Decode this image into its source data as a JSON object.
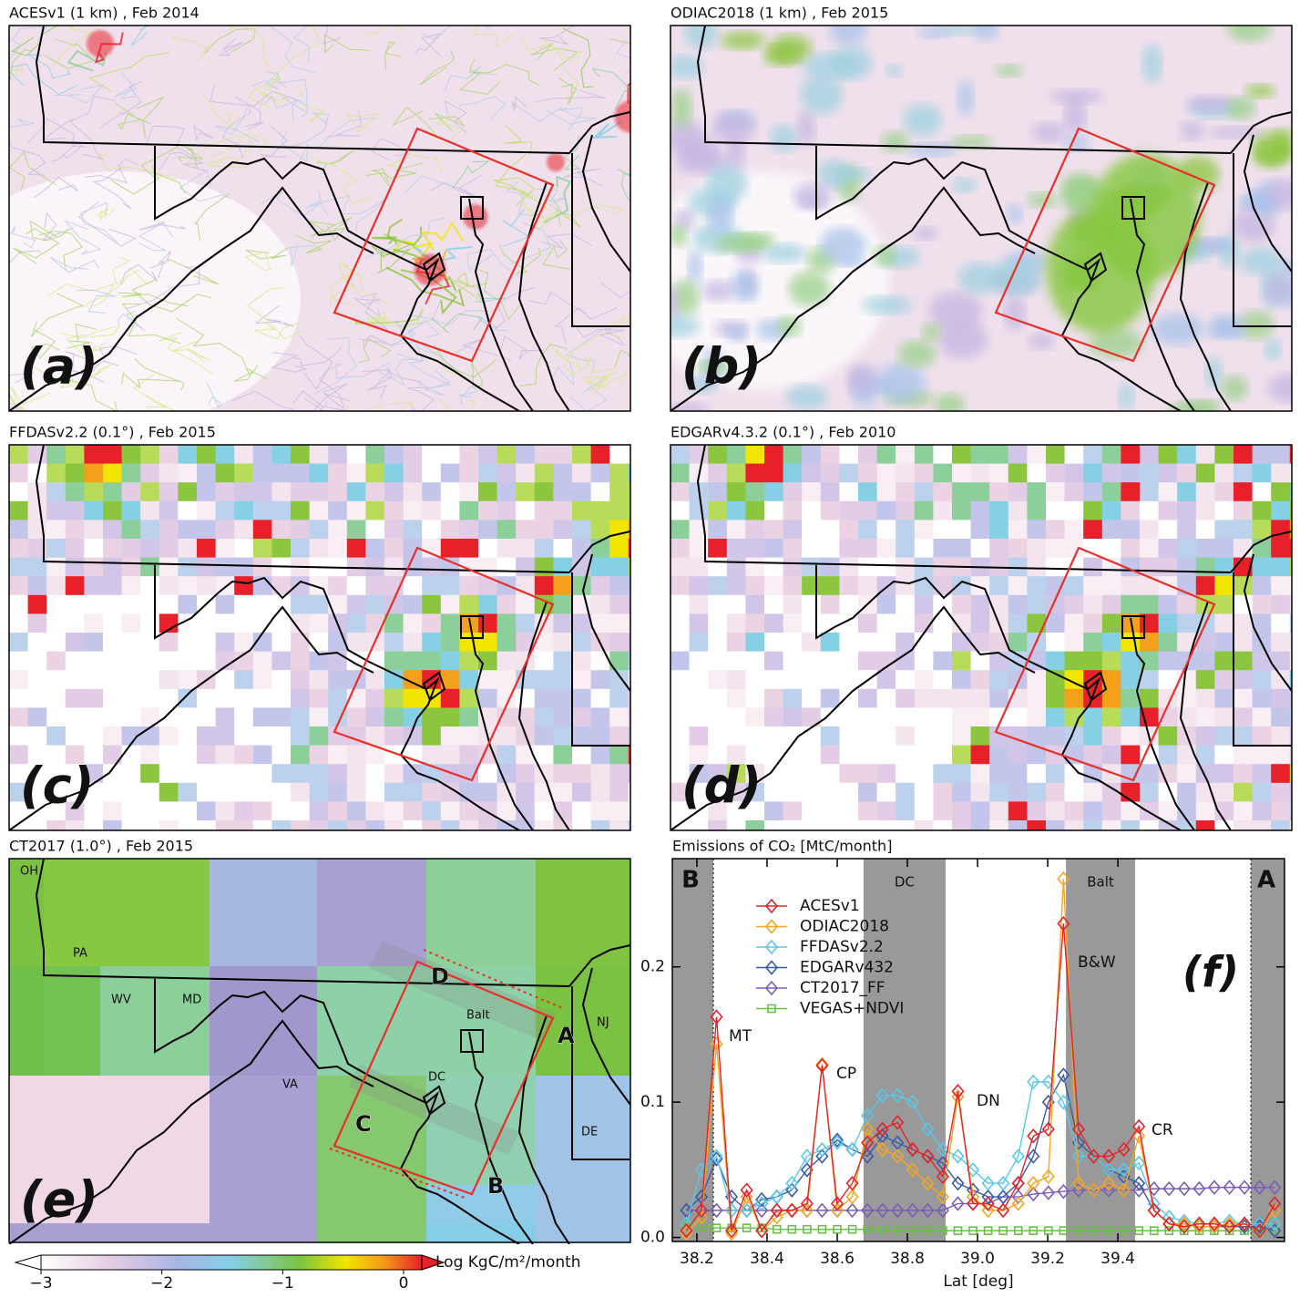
{
  "panels": [
    {
      "title": "ACESv1 (1 km) , Feb 2014",
      "label": "(a)"
    },
    {
      "title": "ODIAC2018 (1 km) , Feb 2015",
      "label": "(b)"
    },
    {
      "title": "FFDASv2.2 (0.1°) , Feb 2015",
      "label": "(c)"
    },
    {
      "title": "EDGARv4.3.2 (0.1°) , Feb 2010",
      "label": "(d)"
    },
    {
      "title": "CT2017 (1.0°) , Feb 2015",
      "label": "(e)",
      "map_labels": [
        "OH",
        "PA",
        "WV",
        "MD",
        "VA",
        "NJ",
        "DE",
        "DC",
        "Balt",
        "A",
        "B",
        "C",
        "D"
      ]
    }
  ],
  "colorbar": {
    "label": "Log KgC/m²/month",
    "ticks": [
      {
        "value": -3,
        "label": "−3"
      },
      {
        "value": -2,
        "label": "−2"
      },
      {
        "value": -1,
        "label": "−1"
      },
      {
        "value": 0,
        "label": "0"
      }
    ]
  },
  "chart_data": {
    "type": "line",
    "title": "Emissions of CO₂ [MtC/month]",
    "x_label": "Lat [deg]",
    "xlim": [
      38.13,
      39.875
    ],
    "xticks": [
      38.2,
      38.4,
      38.6,
      38.8,
      {
        "value": 39,
        "label": "39.0"
      },
      39.2,
      39.4
    ],
    "ylim": [
      -0.003,
      0.28
    ],
    "yticks": [
      {
        "value": 0,
        "label": "0.0"
      },
      0.1,
      0.2
    ],
    "shaded_regions": [
      {
        "label": "B",
        "from": 38.13,
        "to": 38.247
      },
      {
        "label": "DC",
        "from": 38.675,
        "to": 38.909
      },
      {
        "label": "Balt",
        "from": 39.252,
        "to": 39.449
      },
      {
        "label": "A",
        "from": 39.779,
        "to": 39.875
      }
    ],
    "annotations": [
      "MT",
      "CP",
      "DN",
      "B&W",
      "CR",
      "(f)"
    ],
    "x": [
      38.17,
      38.213,
      38.256,
      38.299,
      38.342,
      38.385,
      38.428,
      38.471,
      38.514,
      38.557,
      38.6,
      38.643,
      38.686,
      38.729,
      38.772,
      38.815,
      38.858,
      38.901,
      38.944,
      38.987,
      39.03,
      39.073,
      39.116,
      39.159,
      39.202,
      39.245,
      39.288,
      39.331,
      39.374,
      39.417,
      39.46,
      39.503,
      39.546,
      39.589,
      39.632,
      39.675,
      39.718,
      39.761,
      39.804,
      39.847
    ],
    "series": [
      {
        "name": "ACESv1",
        "color": "#e0252a",
        "marker": "diamond",
        "values": [
          0.005,
          0.02,
          0.163,
          0.005,
          0.035,
          0.005,
          0.02,
          0.02,
          0.025,
          0.127,
          0.025,
          0.04,
          0.07,
          0.08,
          0.085,
          0.065,
          0.06,
          0.045,
          0.108,
          0.025,
          0.025,
          0.02,
          0.04,
          0.075,
          0.08,
          0.232,
          0.08,
          0.06,
          0.06,
          0.065,
          0.082,
          0.02,
          0.01,
          0.008,
          0.01,
          0.01,
          0.008,
          0.01,
          0.005,
          0.025
        ]
      },
      {
        "name": "ODIAC2018",
        "color": "#f5a623",
        "marker": "diamond",
        "values": [
          0.003,
          0.015,
          0.143,
          0.003,
          0.03,
          0.005,
          0.015,
          0.02,
          0.02,
          0.128,
          0.02,
          0.03,
          0.08,
          0.065,
          0.06,
          0.05,
          0.04,
          0.03,
          0.104,
          0.03,
          0.02,
          0.02,
          0.025,
          0.04,
          0.045,
          0.265,
          0.04,
          0.035,
          0.04,
          0.035,
          0.075,
          0.02,
          0.01,
          0.01,
          0.008,
          0.008,
          0.01,
          0.01,
          0.005,
          0.02
        ]
      },
      {
        "name": "FFDASv2.2",
        "color": "#5bc8e8",
        "marker": "diamond",
        "values": [
          0.01,
          0.05,
          0.06,
          0.02,
          0.02,
          0.025,
          0.03,
          0.04,
          0.06,
          0.065,
          0.07,
          0.065,
          0.09,
          0.105,
          0.105,
          0.1,
          0.08,
          0.065,
          0.06,
          0.05,
          0.04,
          0.04,
          0.06,
          0.115,
          0.115,
          0.1,
          0.06,
          0.06,
          0.05,
          0.05,
          0.055,
          0.025,
          0.015,
          0.012,
          0.01,
          0.01,
          0.012,
          0.01,
          0.01,
          0.01
        ]
      },
      {
        "name": "EDGARv432",
        "color": "#3a5ba8",
        "marker": "diamond",
        "values": [
          0.02,
          0.03,
          0.058,
          0.03,
          0.02,
          0.028,
          0.03,
          0.035,
          0.05,
          0.06,
          0.072,
          0.065,
          0.06,
          0.075,
          0.07,
          0.065,
          0.06,
          0.055,
          0.04,
          0.035,
          0.03,
          0.03,
          0.04,
          0.06,
          0.1,
          0.12,
          0.07,
          0.06,
          0.05,
          0.045,
          0.04,
          0.02,
          0.01,
          0.01,
          0.008,
          0.008,
          0.008,
          0.008,
          0.008,
          0.005
        ]
      },
      {
        "name": "CT2017_FF",
        "color": "#7c5cb8",
        "marker": "diamond",
        "values": [
          0.02,
          0.02,
          0.02,
          0.02,
          0.02,
          0.02,
          0.02,
          0.02,
          0.02,
          0.02,
          0.02,
          0.02,
          0.02,
          0.02,
          0.02,
          0.02,
          0.02,
          0.02,
          0.025,
          0.025,
          0.025,
          0.03,
          0.03,
          0.032,
          0.033,
          0.034,
          0.035,
          0.035,
          0.035,
          0.035,
          0.035,
          0.036,
          0.036,
          0.036,
          0.036,
          0.037,
          0.037,
          0.037,
          0.037,
          0.037
        ]
      },
      {
        "name": "VEGAS+NDVI",
        "color": "#6abf45",
        "marker": "square",
        "values": [
          0.008,
          0.008,
          0.007,
          0.007,
          0.007,
          0.007,
          0.006,
          0.006,
          0.006,
          0.006,
          0.006,
          0.006,
          0.006,
          0.006,
          0.005,
          0.005,
          0.005,
          0.005,
          0.005,
          0.005,
          0.005,
          0.005,
          0.005,
          0.005,
          0.005,
          0.005,
          0.005,
          0.005,
          0.005,
          0.005,
          0.005,
          0.005,
          0.005,
          0.005,
          0.005,
          0.005,
          0.005,
          0.005,
          0.005,
          0.005
        ]
      }
    ]
  }
}
